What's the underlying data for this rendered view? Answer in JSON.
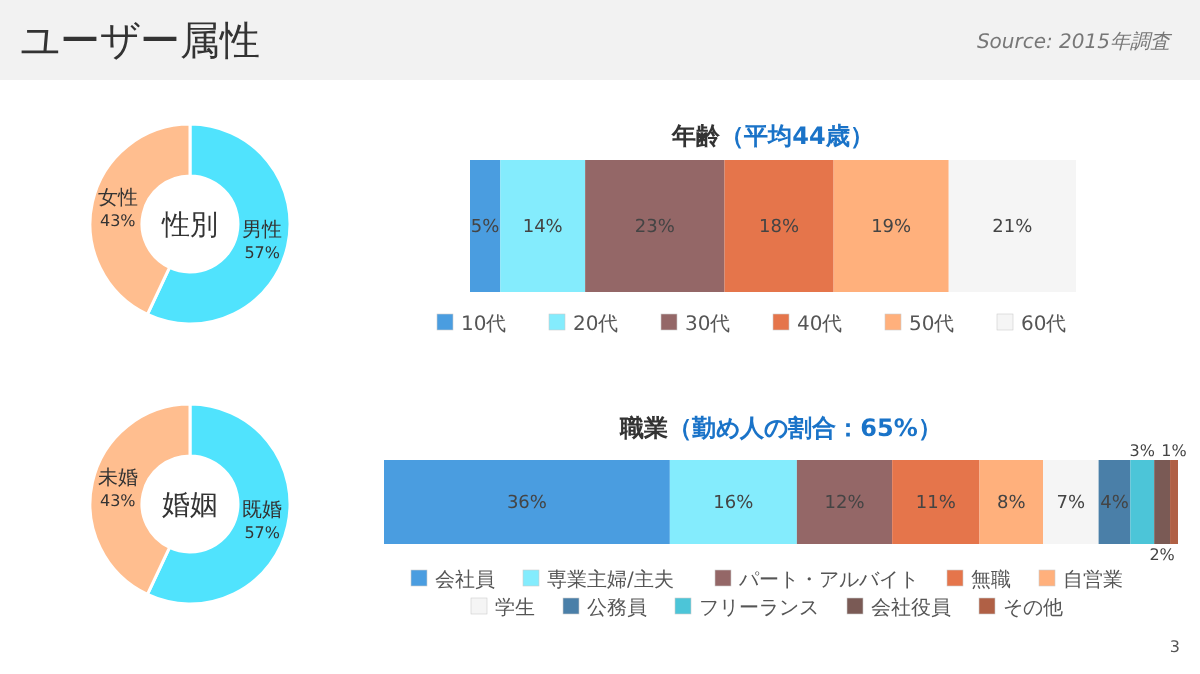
{
  "chart_data": [
    {
      "type": "other",
      "title": "ユーザー属性",
      "annotations": [
        "Source: 2015年調査",
        "3"
      ]
    },
    {
      "type": "donut",
      "title": "性別",
      "categories": [
        "男性",
        "女性"
      ],
      "values": [
        57,
        43
      ],
      "value_labels": [
        "57%",
        "43%"
      ],
      "colors": [
        "#50e3fd",
        "#ffbe8f"
      ]
    },
    {
      "type": "bar",
      "title": "年齢",
      "subtitle": "（平均44歳）",
      "orientation": "horizontal",
      "stacked": true,
      "legend": "bottom",
      "marker": "square",
      "categories": [
        null
      ],
      "series": [
        {
          "name": "10代",
          "color": "#4a9de0",
          "values": [
            5
          ],
          "value_labels": [
            "5%"
          ]
        },
        {
          "name": "20代",
          "color": "#84ecfd",
          "values": [
            14
          ],
          "value_labels": [
            "14%"
          ]
        },
        {
          "name": "30代",
          "color": "#946767",
          "values": [
            23
          ],
          "value_labels": [
            "23%"
          ]
        },
        {
          "name": "40代",
          "color": "#e5754b",
          "values": [
            18
          ],
          "value_labels": [
            "18%"
          ]
        },
        {
          "name": "50代",
          "color": "#ffb07c",
          "values": [
            19
          ],
          "value_labels": [
            "19%"
          ]
        },
        {
          "name": "60代",
          "color": "#f5f5f5",
          "values": [
            21
          ],
          "value_labels": [
            "21%"
          ]
        }
      ]
    },
    {
      "type": "donut",
      "title": "婚姻",
      "categories": [
        "既婚",
        "未婚"
      ],
      "values": [
        57,
        43
      ],
      "value_labels": [
        "57%",
        "43%"
      ],
      "colors": [
        "#50e3fd",
        "#ffbe8f"
      ]
    },
    {
      "type": "bar",
      "title": "職業",
      "subtitle": "（勤め人の割合：65%）",
      "orientation": "horizontal",
      "stacked": true,
      "legend": "bottom",
      "marker": "square",
      "categories": [
        null
      ],
      "series": [
        {
          "name": "会社員",
          "color": "#4a9de0",
          "values": [
            36
          ],
          "value_labels": [
            "36%"
          ]
        },
        {
          "name": "専業主婦/主夫",
          "color": "#84ecfd",
          "values": [
            16
          ],
          "value_labels": [
            "16%"
          ]
        },
        {
          "name": "パート・アルバイト",
          "color": "#946767",
          "values": [
            12
          ],
          "value_labels": [
            "12%"
          ]
        },
        {
          "name": "無職",
          "color": "#e5754b",
          "values": [
            11
          ],
          "value_labels": [
            "11%"
          ]
        },
        {
          "name": "自営業",
          "color": "#ffb07c",
          "values": [
            8
          ],
          "value_labels": [
            "8%"
          ]
        },
        {
          "name": "学生",
          "color": "#f5f5f5",
          "values": [
            7
          ],
          "value_labels": [
            "7%"
          ]
        },
        {
          "name": "公務員",
          "color": "#4a7fa8",
          "values": [
            4
          ],
          "value_labels": [
            "4%"
          ]
        },
        {
          "name": "フリーランス",
          "color": "#4cc5d8",
          "values": [
            3
          ],
          "value_labels": [
            "3%"
          ]
        },
        {
          "name": "会社役員",
          "color": "#7a5a55",
          "values": [
            2
          ],
          "value_labels": [
            "2%"
          ]
        },
        {
          "name": "その他",
          "color": "#b06045",
          "values": [
            1
          ],
          "value_labels": [
            "1%"
          ]
        }
      ]
    }
  ]
}
